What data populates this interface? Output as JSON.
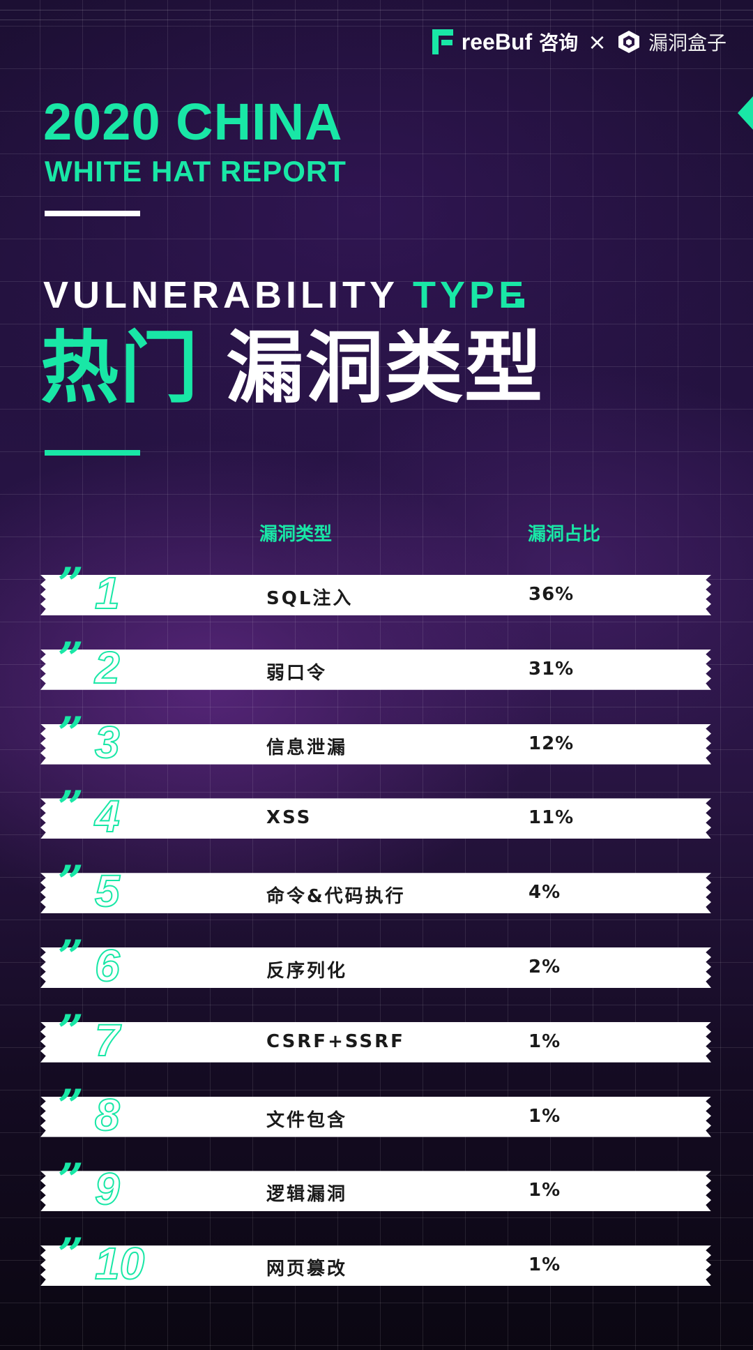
{
  "header": {
    "brand_left": "reeBuf",
    "brand_left_cn": "咨询",
    "separator": "×",
    "brand_right": "漏洞盒子"
  },
  "title": {
    "line1": "2020 CHINA",
    "line2": "WHITE HAT REPORT",
    "section_en_1": "VULNERABILITY",
    "section_en_2": "TYPE",
    "section_cn_hot": "热门",
    "section_cn": "漏洞类型"
  },
  "table": {
    "col_type": "漏洞类型",
    "col_ratio": "漏洞占比",
    "rows": [
      {
        "rank": "1",
        "type": "SQL注入",
        "ratio": "36%"
      },
      {
        "rank": "2",
        "type": "弱口令",
        "ratio": "31%"
      },
      {
        "rank": "3",
        "type": "信息泄漏",
        "ratio": "12%"
      },
      {
        "rank": "4",
        "type": "XSS",
        "ratio": "11%"
      },
      {
        "rank": "5",
        "type": "命令&代码执行",
        "ratio": "4%"
      },
      {
        "rank": "6",
        "type": "反序列化",
        "ratio": "2%"
      },
      {
        "rank": "7",
        "type": "CSRF+SSRF",
        "ratio": "1%"
      },
      {
        "rank": "8",
        "type": "文件包含",
        "ratio": "1%"
      },
      {
        "rank": "9",
        "type": "逻辑漏洞",
        "ratio": "1%"
      },
      {
        "rank": "10",
        "type": "网页篡改",
        "ratio": "1%"
      }
    ]
  },
  "colors": {
    "accent": "#19e7a6",
    "background": "#1c0f33"
  },
  "icons": [
    "freebuf-logo-icon",
    "vulbox-cube-icon",
    "quote-mark-icon"
  ]
}
